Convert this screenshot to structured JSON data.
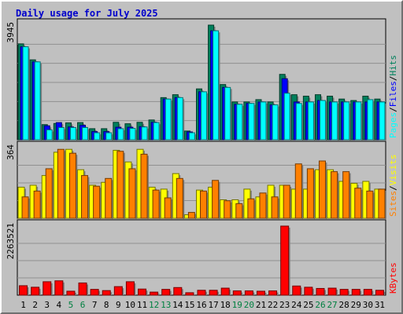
{
  "title": "Daily usage for July 2025",
  "colors": {
    "background": "#c0c0c0",
    "hits": "#00805c",
    "files": "#0000ff",
    "pages": "#00ffff",
    "visits": "#ffff00",
    "sites": "#ff8000",
    "kbytes": "#ff0000",
    "title": "#0000cc",
    "weekend_day": "#008040",
    "weekday_day": "#000000"
  },
  "chart_data": [
    {
      "type": "bar",
      "panel": "hits-files-pages",
      "categories": [
        "1",
        "2",
        "3",
        "4",
        "5",
        "6",
        "7",
        "8",
        "9",
        "10",
        "11",
        "12",
        "13",
        "14",
        "15",
        "16",
        "17",
        "18",
        "19",
        "20",
        "21",
        "22",
        "23",
        "24",
        "25",
        "26",
        "27",
        "28",
        "29",
        "30",
        "31"
      ],
      "weekend_days": [
        "5",
        "6",
        "12",
        "13",
        "19",
        "20",
        "26",
        "27"
      ],
      "ylim": [
        0,
        3945
      ],
      "max_label": "3945",
      "legend": [
        "Pages",
        "Files",
        "Hits"
      ],
      "series": [
        {
          "name": "Hits",
          "color": "#00805c",
          "values": [
            3300,
            2750,
            520,
            560,
            580,
            590,
            380,
            380,
            600,
            550,
            600,
            680,
            1450,
            1550,
            300,
            1750,
            3945,
            1900,
            1300,
            1300,
            1380,
            1300,
            2250,
            1550,
            1500,
            1550,
            1500,
            1400,
            1350,
            1500,
            1400
          ]
        },
        {
          "name": "Files",
          "color": "#0000ff",
          "values": [
            3200,
            2680,
            480,
            590,
            440,
            500,
            280,
            280,
            430,
            430,
            450,
            600,
            1400,
            1450,
            270,
            1650,
            3750,
            1800,
            1220,
            1250,
            1300,
            1200,
            2100,
            1300,
            1300,
            1350,
            1300,
            1300,
            1300,
            1300,
            1300
          ]
        },
        {
          "name": "Pages",
          "color": "#00ffff",
          "values": [
            3200,
            2680,
            340,
            420,
            420,
            420,
            240,
            240,
            380,
            390,
            440,
            590,
            1400,
            1450,
            240,
            1650,
            3750,
            1800,
            1220,
            1250,
            1300,
            1200,
            1600,
            1250,
            1300,
            1350,
            1300,
            1300,
            1300,
            1380,
            1300
          ]
        }
      ]
    },
    {
      "type": "bar",
      "panel": "visits-sites",
      "categories": [
        "1",
        "2",
        "3",
        "4",
        "5",
        "6",
        "7",
        "8",
        "9",
        "10",
        "11",
        "12",
        "13",
        "14",
        "15",
        "16",
        "17",
        "18",
        "19",
        "20",
        "21",
        "22",
        "23",
        "24",
        "25",
        "26",
        "27",
        "28",
        "29",
        "30",
        "31"
      ],
      "ylim": [
        0,
        364
      ],
      "max_label": "364",
      "legend": [
        "Sites",
        "Visits"
      ],
      "series": [
        {
          "name": "Visits",
          "color": "#ffff00",
          "values": [
            160,
            170,
            220,
            340,
            355,
            250,
            170,
            185,
            350,
            290,
            355,
            160,
            150,
            230,
            18,
            145,
            160,
            95,
            95,
            150,
            110,
            170,
            170,
            150,
            150,
            250,
            250,
            190,
            180,
            190,
            150
          ]
        },
        {
          "name": "Sites",
          "color": "#ff8000",
          "values": [
            110,
            140,
            255,
            355,
            335,
            220,
            165,
            205,
            345,
            255,
            330,
            145,
            105,
            205,
            30,
            140,
            195,
            90,
            75,
            100,
            130,
            110,
            170,
            280,
            255,
            295,
            240,
            240,
            155,
            140,
            150
          ]
        }
      ]
    },
    {
      "type": "bar",
      "panel": "kbytes",
      "categories": [
        "1",
        "2",
        "3",
        "4",
        "5",
        "6",
        "7",
        "8",
        "9",
        "10",
        "11",
        "12",
        "13",
        "14",
        "15",
        "16",
        "17",
        "18",
        "19",
        "20",
        "21",
        "22",
        "23",
        "24",
        "25",
        "26",
        "27",
        "28",
        "29",
        "30",
        "31"
      ],
      "ylim": [
        0,
        2263521
      ],
      "max_label": "2263521",
      "legend": [
        "KBytes"
      ],
      "series": [
        {
          "name": "KBytes",
          "color": "#ff0000",
          "values": [
            310000,
            260000,
            440000,
            470000,
            130000,
            400000,
            190000,
            150000,
            280000,
            440000,
            200000,
            100000,
            190000,
            250000,
            80000,
            160000,
            160000,
            230000,
            140000,
            140000,
            130000,
            140000,
            2263521,
            300000,
            260000,
            220000,
            230000,
            190000,
            190000,
            190000,
            160000
          ]
        }
      ]
    }
  ]
}
